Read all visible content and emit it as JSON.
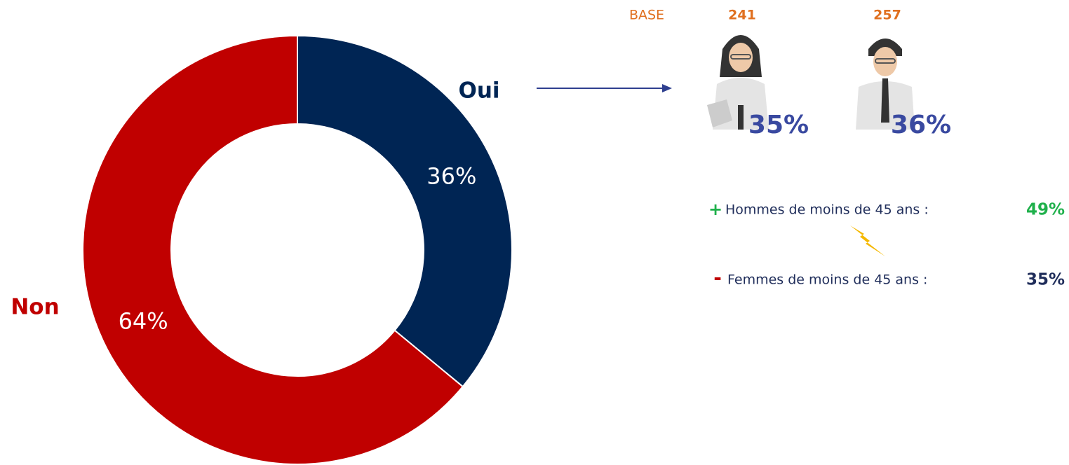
{
  "chart_data": {
    "type": "donut",
    "categories": [
      "Oui",
      "Non"
    ],
    "values": [
      36,
      64
    ],
    "value_labels": [
      "36%",
      "64%"
    ],
    "colors": [
      "#002554",
      "#c00000"
    ]
  },
  "side": {
    "base_label": "BASE",
    "women_base": "241",
    "men_base": "257",
    "women_pct": "35%",
    "men_pct": "36%",
    "plus_sign": "+",
    "plus_text": "Hommes de moins de 45 ans :",
    "plus_value": "49%",
    "minus_sign": "-",
    "minus_text": "Femmes de moins de 45 ans :",
    "minus_value": "35%"
  }
}
